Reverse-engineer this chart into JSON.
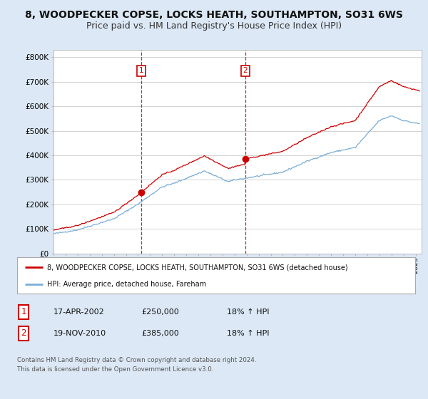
{
  "title": "8, WOODPECKER COPSE, LOCKS HEATH, SOUTHAMPTON, SO31 6WS",
  "subtitle": "Price paid vs. HM Land Registry's House Price Index (HPI)",
  "ylabel_ticks": [
    "£0",
    "£100K",
    "£200K",
    "£300K",
    "£400K",
    "£500K",
    "£600K",
    "£700K",
    "£800K"
  ],
  "ytick_vals": [
    0,
    100000,
    200000,
    300000,
    400000,
    500000,
    600000,
    700000,
    800000
  ],
  "ylim": [
    0,
    830000
  ],
  "xlim_start": 1995.0,
  "xlim_end": 2025.5,
  "hpi_color": "#7aaed6",
  "price_color": "#cc0000",
  "sale1_x": 2002.29,
  "sale1_y": 250000,
  "sale2_x": 2010.89,
  "sale2_y": 385000,
  "legend_label1": "8, WOODPECKER COPSE, LOCKS HEATH, SOUTHAMPTON, SO31 6WS (detached house)",
  "legend_label2": "HPI: Average price, detached house, Fareham",
  "table_row1": [
    "1",
    "17-APR-2002",
    "£250,000",
    "18% ↑ HPI"
  ],
  "table_row2": [
    "2",
    "19-NOV-2010",
    "£385,000",
    "18% ↑ HPI"
  ],
  "footnote": "Contains HM Land Registry data © Crown copyright and database right 2024.\nThis data is licensed under the Open Government Licence v3.0.",
  "background_color": "#dce8f5",
  "plot_bg_color": "#ffffff",
  "grid_color": "#cccccc",
  "title_fontsize": 10,
  "subtitle_fontsize": 9
}
